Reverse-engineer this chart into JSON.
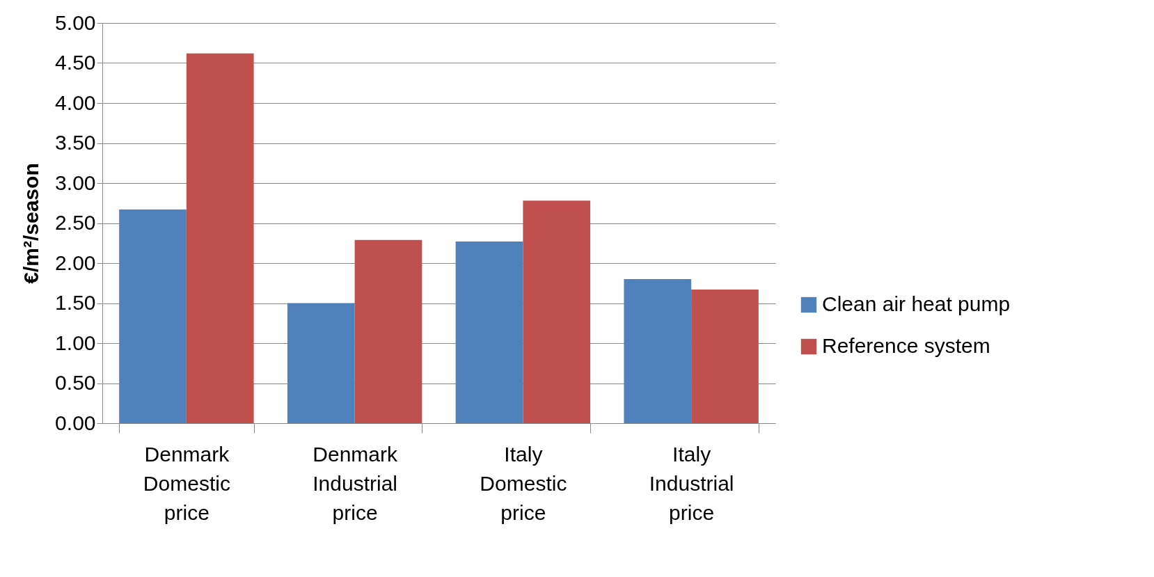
{
  "chart_data": {
    "type": "bar",
    "ylabel": "€/m²/season",
    "categories": [
      "Denmark Domestic price",
      "Denmark Industrial price",
      "Italy Domestic price",
      "Italy Industrial price"
    ],
    "series": [
      {
        "name": "Clean air heat pump",
        "color": "#4f81bd",
        "values": [
          2.67,
          1.5,
          2.27,
          1.8
        ]
      },
      {
        "name": "Reference system",
        "color": "#c0504d",
        "values": [
          4.62,
          2.29,
          2.78,
          1.67
        ]
      }
    ],
    "ylim": [
      0,
      5
    ],
    "yticks": [
      {
        "value": 0,
        "label": "0.00"
      },
      {
        "value": 0.5,
        "label": "0.50"
      },
      {
        "value": 1,
        "label": "1.00"
      },
      {
        "value": 1.5,
        "label": "1.50"
      },
      {
        "value": 2,
        "label": "2.00"
      },
      {
        "value": 2.5,
        "label": "2.50"
      },
      {
        "value": 3,
        "label": "3.00"
      },
      {
        "value": 3.5,
        "label": "3.50"
      },
      {
        "value": 4,
        "label": "4.00"
      },
      {
        "value": 4.5,
        "label": "4.50"
      },
      {
        "value": 5,
        "label": "5.00"
      }
    ],
    "grid": "y",
    "legend": "right"
  }
}
